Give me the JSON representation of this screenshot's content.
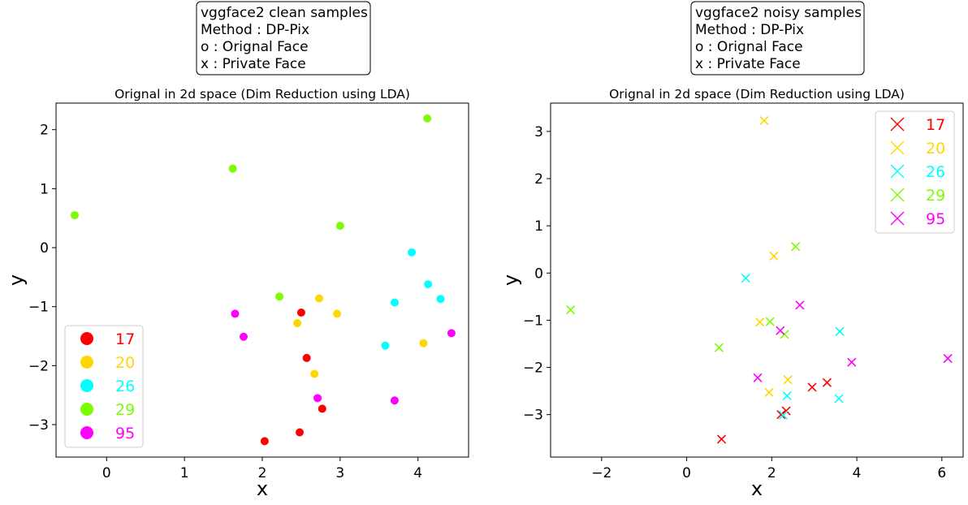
{
  "chart_data": [
    {
      "type": "scatter",
      "marker": "o",
      "annotation": [
        "vggface2 clean samples",
        "Method : DP-Pix",
        "o : Orignal Face",
        "x : Private Face"
      ],
      "title": "Orignal in 2d space (Dim Reduction using LDA)",
      "xlabel": "x",
      "ylabel": "y",
      "xlim": [
        -0.65,
        4.65
      ],
      "ylim": [
        -3.55,
        2.45
      ],
      "xticks": [
        0,
        1,
        2,
        3,
        4
      ],
      "yticks": [
        -3,
        -2,
        -1,
        0,
        1,
        2
      ],
      "xtick_labels": [
        "0",
        "1",
        "2",
        "3",
        "4"
      ],
      "ytick_labels": [
        "−3",
        "−2",
        "−1",
        "0",
        "1",
        "2"
      ],
      "legend_position": "lower-left",
      "series": [
        {
          "name": "17",
          "color": "#ff0000",
          "points": [
            [
              2.5,
              -1.1
            ],
            [
              2.57,
              -1.87
            ],
            [
              2.77,
              -2.73
            ],
            [
              2.48,
              -3.13
            ],
            [
              2.03,
              -3.28
            ]
          ]
        },
        {
          "name": "20",
          "color": "#ffd700",
          "points": [
            [
              2.73,
              -0.86
            ],
            [
              2.96,
              -1.12
            ],
            [
              2.45,
              -1.28
            ],
            [
              2.67,
              -2.14
            ],
            [
              4.07,
              -1.62
            ]
          ]
        },
        {
          "name": "26",
          "color": "#00ffff",
          "points": [
            [
              3.92,
              -0.08
            ],
            [
              4.13,
              -0.62
            ],
            [
              4.29,
              -0.87
            ],
            [
              3.7,
              -0.93
            ],
            [
              3.58,
              -1.66
            ]
          ]
        },
        {
          "name": "29",
          "color": "#7cfc00",
          "points": [
            [
              -0.41,
              0.55
            ],
            [
              1.62,
              1.34
            ],
            [
              4.12,
              2.19
            ],
            [
              3.0,
              0.37
            ],
            [
              2.22,
              -0.83
            ]
          ]
        },
        {
          "name": "95",
          "color": "#ff00ff",
          "points": [
            [
              1.65,
              -1.12
            ],
            [
              1.76,
              -1.51
            ],
            [
              2.71,
              -2.55
            ],
            [
              3.7,
              -2.59
            ],
            [
              4.43,
              -1.45
            ]
          ]
        }
      ]
    },
    {
      "type": "scatter",
      "marker": "x",
      "annotation": [
        "vggface2 noisy samples",
        "Method : DP-Pix",
        "o : Orignal Face",
        "x : Private Face"
      ],
      "title": "Orignal in 2d space (Dim Reduction using LDA)",
      "xlabel": "x",
      "ylabel": "y",
      "xlim": [
        -3.2,
        6.5
      ],
      "ylim": [
        -3.9,
        3.6
      ],
      "xticks": [
        -2,
        0,
        2,
        4,
        6
      ],
      "yticks": [
        -3,
        -2,
        -1,
        0,
        1,
        2,
        3
      ],
      "xtick_labels": [
        "−2",
        "0",
        "2",
        "4",
        "6"
      ],
      "ytick_labels": [
        "−3",
        "−2",
        "−1",
        "0",
        "1",
        "2",
        "3"
      ],
      "legend_position": "upper-right",
      "series": [
        {
          "name": "17",
          "color": "#ff0000",
          "points": [
            [
              0.82,
              -3.52
            ],
            [
              2.34,
              -2.92
            ],
            [
              2.95,
              -2.42
            ],
            [
              3.3,
              -2.32
            ],
            [
              2.22,
              -3.0
            ]
          ]
        },
        {
          "name": "20",
          "color": "#ffd700",
          "points": [
            [
              1.82,
              3.23
            ],
            [
              2.05,
              0.36
            ],
            [
              1.72,
              -1.04
            ],
            [
              2.38,
              -2.26
            ],
            [
              1.94,
              -2.53
            ]
          ]
        },
        {
          "name": "26",
          "color": "#00ffff",
          "points": [
            [
              1.39,
              -0.11
            ],
            [
              3.6,
              -1.24
            ],
            [
              2.36,
              -2.6
            ],
            [
              3.58,
              -2.66
            ],
            [
              2.27,
              -3.01
            ]
          ]
        },
        {
          "name": "29",
          "color": "#7cfc00",
          "points": [
            [
              -2.73,
              -0.78
            ],
            [
              0.76,
              -1.58
            ],
            [
              1.96,
              -1.03
            ],
            [
              2.3,
              -1.3
            ],
            [
              2.56,
              0.56
            ]
          ]
        },
        {
          "name": "95",
          "color": "#ff00ff",
          "points": [
            [
              2.66,
              -0.68
            ],
            [
              2.2,
              -1.22
            ],
            [
              1.67,
              -2.22
            ],
            [
              3.88,
              -1.89
            ],
            [
              6.14,
              -1.81
            ]
          ]
        }
      ]
    }
  ]
}
